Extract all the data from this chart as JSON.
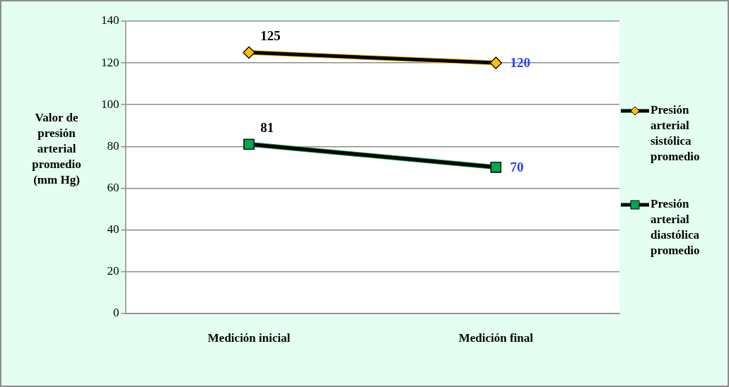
{
  "chart_data": {
    "type": "line",
    "ylabel": "Valor de presión arterial promedio (mm Hg)",
    "categories": [
      "Medición inicial",
      "Medición final"
    ],
    "series": [
      {
        "name": "Presión arterial sistólica promedio",
        "color": "#ffc000",
        "marker": "diamond",
        "values": [
          125,
          120
        ]
      },
      {
        "name": "Presión arterial diastólica promedio",
        "color": "#00a651",
        "marker": "square",
        "values": [
          81,
          70
        ]
      }
    ],
    "ylim": [
      0,
      140
    ],
    "yticks": [
      0,
      20,
      40,
      60,
      80,
      100,
      120,
      140
    ],
    "grid": "y",
    "legend": "right",
    "data_labels": true
  }
}
